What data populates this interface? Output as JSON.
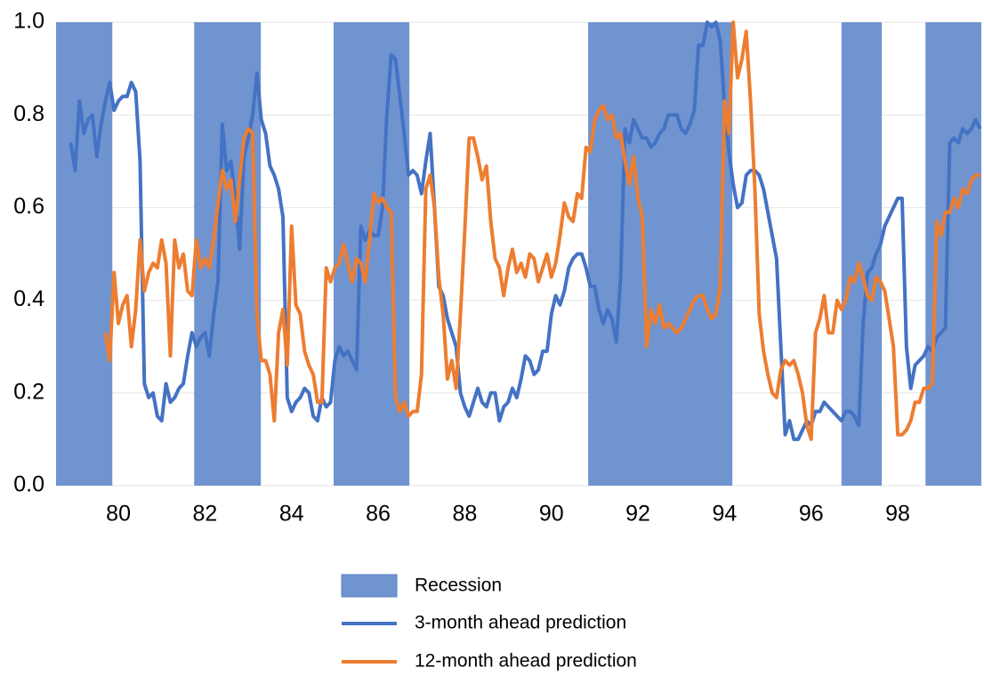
{
  "chart_data": {
    "type": "line",
    "xlim": [
      78.56,
      99.93
    ],
    "xticks": [
      80,
      82,
      84,
      86,
      88,
      90,
      92,
      94,
      96,
      98
    ],
    "ylim": [
      0,
      1
    ],
    "yticks": [
      {
        "value": 0,
        "label": "0.0"
      },
      0.2,
      0.4,
      0.6,
      0.8,
      {
        "value": 1,
        "label": "1.0"
      }
    ],
    "grid": true,
    "recession": {
      "name": "Recession",
      "color": "#7094d0",
      "periods": [
        [
          78.56,
          79.86
        ],
        [
          81.75,
          83.29
        ],
        [
          84.97,
          86.72
        ],
        [
          90.85,
          94.18
        ],
        [
          96.7,
          97.63
        ],
        [
          98.64,
          99.93
        ]
      ]
    },
    "x": [
      78.9,
      79.0,
      79.1,
      79.2,
      79.3,
      79.4,
      79.5,
      79.6,
      79.7,
      79.8,
      79.9,
      80.0,
      80.1,
      80.2,
      80.3,
      80.4,
      80.5,
      80.6,
      80.7,
      80.8,
      80.9,
      81.0,
      81.1,
      81.2,
      81.3,
      81.4,
      81.5,
      81.6,
      81.7,
      81.8,
      81.9,
      82.0,
      82.1,
      82.2,
      82.3,
      82.4,
      82.5,
      82.6,
      82.7,
      82.8,
      82.9,
      83.0,
      83.1,
      83.2,
      83.3,
      83.4,
      83.5,
      83.6,
      83.7,
      83.8,
      83.9,
      84.0,
      84.1,
      84.2,
      84.3,
      84.4,
      84.5,
      84.6,
      84.7,
      84.8,
      84.9,
      85.0,
      85.1,
      85.2,
      85.3,
      85.4,
      85.5,
      85.6,
      85.7,
      85.8,
      85.9,
      86.0,
      86.1,
      86.2,
      86.3,
      86.4,
      86.5,
      86.6,
      86.7,
      86.8,
      86.9,
      87.0,
      87.1,
      87.2,
      87.3,
      87.4,
      87.5,
      87.6,
      87.7,
      87.8,
      87.9,
      88.0,
      88.1,
      88.2,
      88.3,
      88.4,
      88.5,
      88.6,
      88.7,
      88.8,
      88.9,
      89.0,
      89.1,
      89.2,
      89.3,
      89.4,
      89.5,
      89.6,
      89.7,
      89.8,
      89.9,
      90.0,
      90.1,
      90.2,
      90.3,
      90.4,
      90.5,
      90.6,
      90.7,
      90.8,
      90.9,
      91.0,
      91.1,
      91.2,
      91.3,
      91.4,
      91.5,
      91.6,
      91.7,
      91.8,
      91.9,
      92.0,
      92.1,
      92.2,
      92.3,
      92.4,
      92.5,
      92.6,
      92.7,
      92.8,
      92.9,
      93.0,
      93.1,
      93.2,
      93.3,
      93.4,
      93.5,
      93.6,
      93.7,
      93.8,
      93.9,
      94.0,
      94.1,
      94.2,
      94.3,
      94.4,
      94.5,
      94.6,
      94.7,
      94.8,
      94.9,
      95.0,
      95.1,
      95.2,
      95.3,
      95.4,
      95.5,
      95.6,
      95.7,
      95.8,
      95.9,
      96.0,
      96.1,
      96.2,
      96.3,
      96.4,
      96.5,
      96.6,
      96.7,
      96.8,
      96.9,
      97.0,
      97.1,
      97.2,
      97.3,
      97.4,
      97.5,
      97.6,
      97.7,
      97.8,
      97.9,
      98.0,
      98.1,
      98.2,
      98.3,
      98.4,
      98.5,
      98.6,
      98.7,
      98.8,
      98.9,
      99.0,
      99.1,
      99.2,
      99.3,
      99.4,
      99.5,
      99.6,
      99.7,
      99.8,
      99.9
    ],
    "series": [
      {
        "name": "3-month ahead prediction",
        "color": "#4472c4",
        "values": [
          0.74,
          0.68,
          0.83,
          0.76,
          0.79,
          0.8,
          0.71,
          0.78,
          0.83,
          0.87,
          0.81,
          0.83,
          0.84,
          0.84,
          0.87,
          0.85,
          0.7,
          0.22,
          0.19,
          0.2,
          0.15,
          0.14,
          0.22,
          0.18,
          0.19,
          0.21,
          0.22,
          0.28,
          0.33,
          0.3,
          0.32,
          0.33,
          0.28,
          0.37,
          0.44,
          0.78,
          0.68,
          0.7,
          0.62,
          0.51,
          0.71,
          0.75,
          0.8,
          0.89,
          0.79,
          0.76,
          0.69,
          0.67,
          0.64,
          0.58,
          0.19,
          0.16,
          0.18,
          0.19,
          0.21,
          0.2,
          0.15,
          0.14,
          0.19,
          0.17,
          0.18,
          0.27,
          0.3,
          0.28,
          0.29,
          0.27,
          0.25,
          0.56,
          0.53,
          0.55,
          0.54,
          0.54,
          0.6,
          0.8,
          0.93,
          0.92,
          0.84,
          0.76,
          0.67,
          0.68,
          0.67,
          0.63,
          0.7,
          0.76,
          0.6,
          0.43,
          0.41,
          0.36,
          0.33,
          0.3,
          0.2,
          0.17,
          0.15,
          0.18,
          0.21,
          0.18,
          0.17,
          0.2,
          0.2,
          0.14,
          0.17,
          0.18,
          0.21,
          0.19,
          0.23,
          0.28,
          0.27,
          0.24,
          0.25,
          0.29,
          0.29,
          0.37,
          0.41,
          0.39,
          0.42,
          0.47,
          0.49,
          0.5,
          0.5,
          0.47,
          0.43,
          0.43,
          0.38,
          0.35,
          0.38,
          0.36,
          0.31,
          0.45,
          0.77,
          0.74,
          0.79,
          0.77,
          0.75,
          0.75,
          0.73,
          0.74,
          0.76,
          0.77,
          0.8,
          0.8,
          0.8,
          0.77,
          0.76,
          0.78,
          0.81,
          0.95,
          0.95,
          1.0,
          0.99,
          1.0,
          0.96,
          0.82,
          0.72,
          0.65,
          0.6,
          0.61,
          0.67,
          0.68,
          0.68,
          0.67,
          0.64,
          0.59,
          0.54,
          0.49,
          0.3,
          0.11,
          0.14,
          0.1,
          0.1,
          0.12,
          0.14,
          0.13,
          0.16,
          0.16,
          0.18,
          0.17,
          0.16,
          0.15,
          0.14,
          0.16,
          0.16,
          0.15,
          0.13,
          0.35,
          0.46,
          0.47,
          0.5,
          0.52,
          0.56,
          0.58,
          0.6,
          0.62,
          0.62,
          0.3,
          0.21,
          0.26,
          0.27,
          0.28,
          0.3,
          0.29,
          0.32,
          0.33,
          0.34,
          0.74,
          0.75,
          0.74,
          0.77,
          0.76,
          0.77,
          0.79,
          0.77
        ]
      },
      {
        "name": "12-month ahead prediction",
        "color": "#ed7d31",
        "values": [
          null,
          null,
          null,
          null,
          null,
          null,
          null,
          null,
          0.33,
          0.27,
          0.46,
          0.35,
          0.39,
          0.41,
          0.3,
          0.38,
          0.53,
          0.42,
          0.46,
          0.48,
          0.47,
          0.53,
          0.48,
          0.28,
          0.53,
          0.47,
          0.5,
          0.42,
          0.41,
          0.53,
          0.47,
          0.49,
          0.47,
          0.53,
          0.61,
          0.68,
          0.64,
          0.66,
          0.57,
          0.66,
          0.75,
          0.77,
          0.76,
          0.37,
          0.27,
          0.27,
          0.24,
          0.14,
          0.33,
          0.38,
          0.26,
          0.56,
          0.39,
          0.37,
          0.29,
          0.26,
          0.24,
          0.18,
          0.18,
          0.47,
          0.44,
          0.47,
          0.48,
          0.52,
          0.48,
          0.44,
          0.49,
          0.48,
          0.44,
          0.53,
          0.63,
          0.61,
          0.62,
          0.6,
          0.59,
          0.19,
          0.16,
          0.18,
          0.15,
          0.16,
          0.16,
          0.24,
          0.64,
          0.67,
          0.6,
          0.45,
          0.37,
          0.23,
          0.27,
          0.21,
          0.37,
          0.55,
          0.75,
          0.75,
          0.71,
          0.66,
          0.69,
          0.57,
          0.49,
          0.47,
          0.41,
          0.47,
          0.51,
          0.46,
          0.48,
          0.45,
          0.5,
          0.49,
          0.44,
          0.47,
          0.5,
          0.45,
          0.48,
          0.54,
          0.61,
          0.58,
          0.57,
          0.63,
          0.62,
          0.73,
          0.72,
          0.79,
          0.81,
          0.82,
          0.79,
          0.8,
          0.75,
          0.76,
          0.7,
          0.65,
          0.71,
          0.62,
          0.58,
          0.3,
          0.38,
          0.35,
          0.39,
          0.34,
          0.35,
          0.34,
          0.33,
          0.34,
          0.36,
          0.38,
          0.4,
          0.41,
          0.41,
          0.38,
          0.36,
          0.37,
          0.43,
          0.83,
          0.76,
          1.0,
          0.88,
          0.92,
          0.98,
          0.83,
          0.64,
          0.37,
          0.29,
          0.24,
          0.2,
          0.19,
          0.25,
          0.27,
          0.26,
          0.27,
          0.24,
          0.2,
          0.13,
          0.1,
          0.33,
          0.36,
          0.41,
          0.33,
          0.33,
          0.4,
          0.38,
          0.4,
          0.45,
          0.44,
          0.48,
          0.45,
          0.41,
          0.4,
          0.45,
          0.44,
          0.42,
          0.36,
          0.3,
          0.11,
          0.11,
          0.12,
          0.14,
          0.18,
          0.18,
          0.21,
          0.21,
          0.22,
          0.57,
          0.54,
          0.59,
          0.59,
          0.62,
          0.6,
          0.64,
          0.63,
          0.66,
          0.67,
          0.67
        ]
      }
    ]
  }
}
